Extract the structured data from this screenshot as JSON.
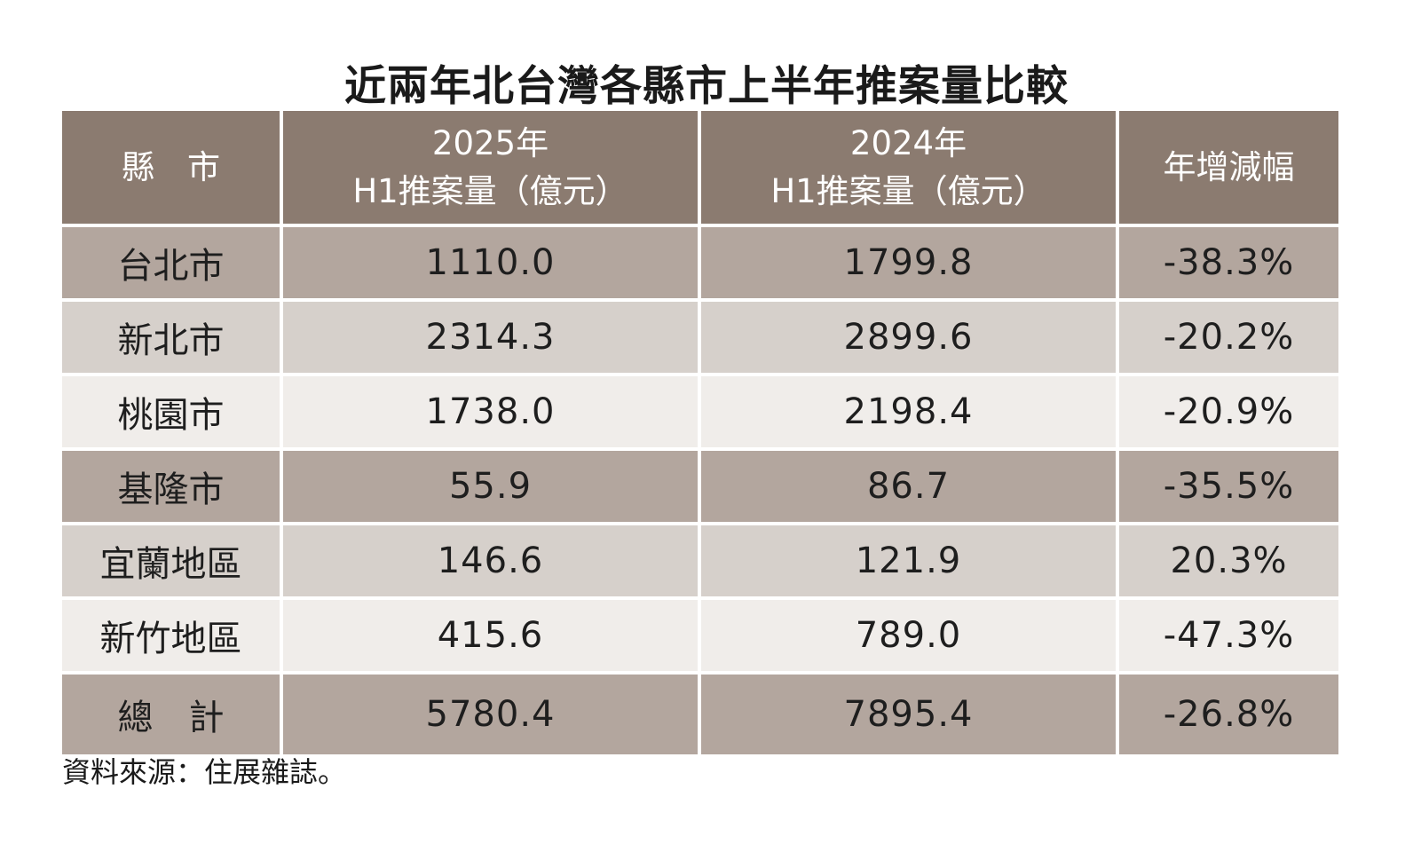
{
  "chart_data": {
    "type": "table",
    "title": "近兩年北台灣各縣市上半年推案量比較",
    "columns": {
      "county": "縣　市",
      "col_2025_line1": "2025年",
      "col_2025_line2": "H1推案量（億元）",
      "col_2024_line1": "2024年",
      "col_2024_line2": "H1推案量（億元）",
      "change": "年增減幅"
    },
    "rows": [
      {
        "county": "台北市",
        "h1_2025": "1110.0",
        "h1_2024": "1799.8",
        "change": "-38.3%"
      },
      {
        "county": "新北市",
        "h1_2025": "2314.3",
        "h1_2024": "2899.6",
        "change": "-20.2%"
      },
      {
        "county": "桃園市",
        "h1_2025": "1738.0",
        "h1_2024": "2198.4",
        "change": "-20.9%"
      },
      {
        "county": "基隆市",
        "h1_2025": "55.9",
        "h1_2024": "86.7",
        "change": "-35.5%"
      },
      {
        "county": "宜蘭地區",
        "h1_2025": "146.6",
        "h1_2024": "121.9",
        "change": "20.3%"
      },
      {
        "county": "新竹地區",
        "h1_2025": "415.6",
        "h1_2024": "789.0",
        "change": "-47.3%"
      }
    ],
    "total": {
      "label": "總　計",
      "h1_2025": "5780.4",
      "h1_2024": "7895.4",
      "change": "-26.8%"
    },
    "source": "資料來源：住展雜誌。"
  },
  "colors": {
    "header": "#8b7b70",
    "row_dark": "#b3a69e",
    "row_mid": "#d6d0cb",
    "row_light": "#f0edea"
  }
}
